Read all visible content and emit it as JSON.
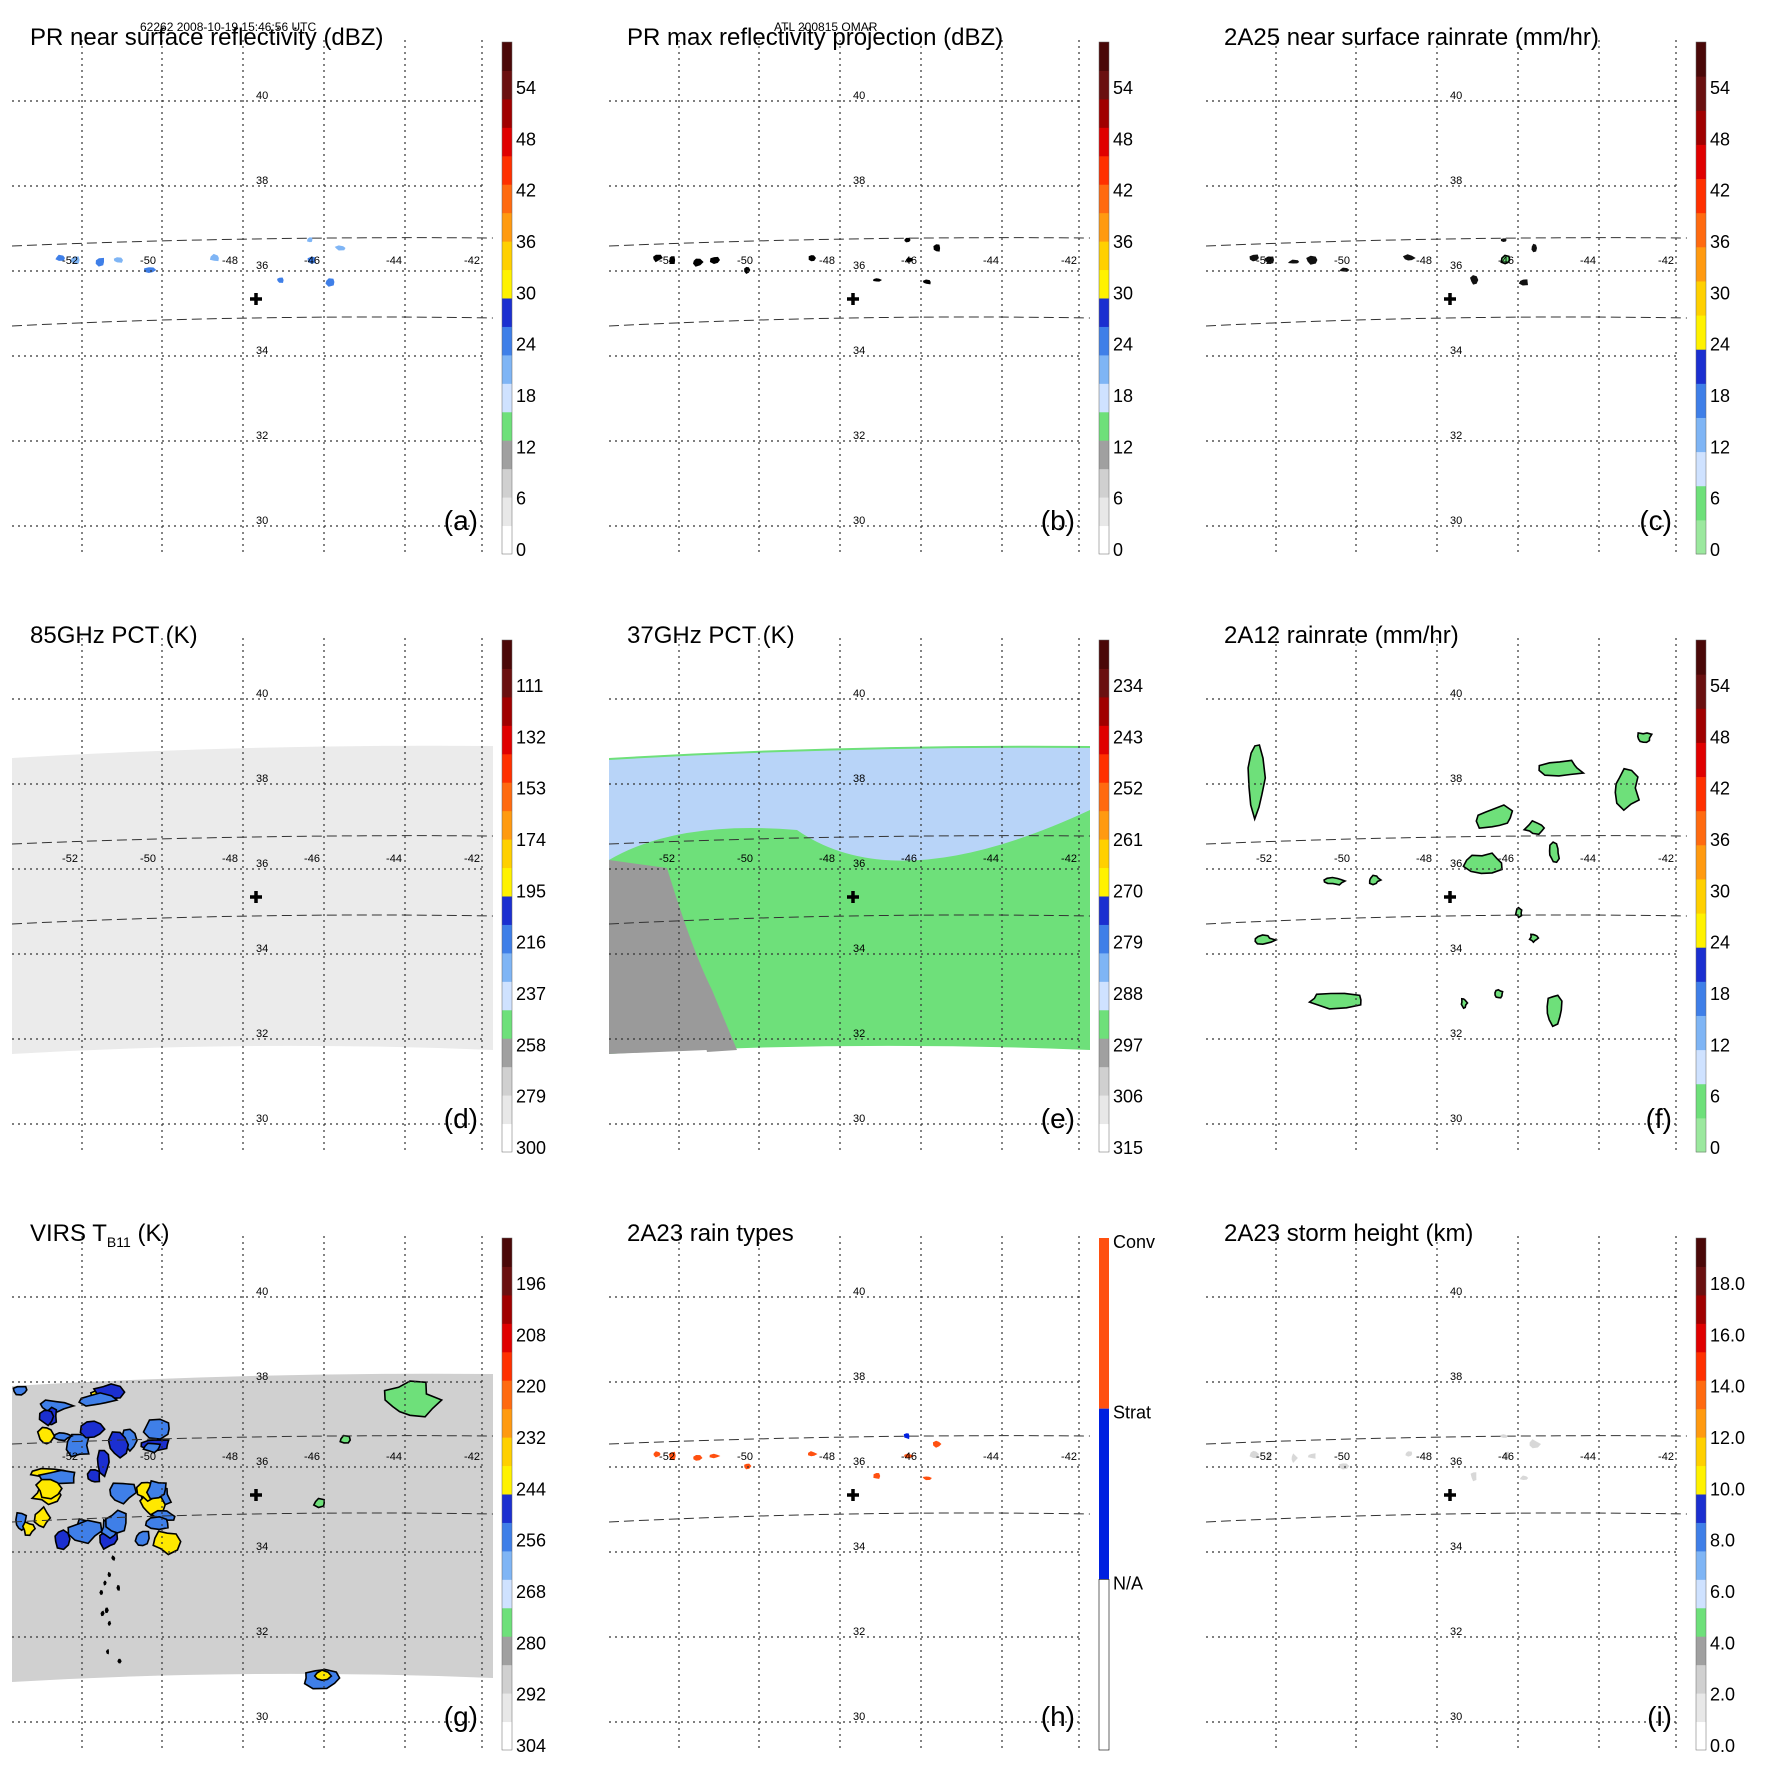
{
  "header": {
    "left": "62262 2008-10-19 15:46:56 UTC",
    "center": "ATL 200815 OMAR"
  },
  "map": {
    "lon_labels": [
      "-52",
      "-50",
      "-48",
      "-46",
      "-44",
      "-42"
    ],
    "lat_labels": [
      "40",
      "38",
      "36",
      "34",
      "32",
      "30"
    ]
  },
  "panels": [
    {
      "id": "a",
      "title": "PR near surface reflectivity (dBZ)",
      "letter": "(a)",
      "field": "swath-pr",
      "cbar": [
        "0",
        "6",
        "12",
        "18",
        "24",
        "30",
        "36",
        "42",
        "48",
        "54"
      ],
      "palette": "std"
    },
    {
      "id": "b",
      "title": "PR max reflectivity projection (dBZ)",
      "letter": "(b)",
      "field": "swath-pr",
      "cbar": [
        "0",
        "6",
        "12",
        "18",
        "24",
        "30",
        "36",
        "42",
        "48",
        "54"
      ],
      "palette": "std"
    },
    {
      "id": "c",
      "title": "2A25 near surface rainrate (mm/hr)",
      "letter": "(c)",
      "field": "swath-pr",
      "cbar": [
        "0",
        "6",
        "12",
        "18",
        "24",
        "30",
        "36",
        "42",
        "48",
        "54"
      ],
      "palette": "rain"
    },
    {
      "id": "d",
      "title": "85GHz PCT (K)",
      "letter": "(d)",
      "field": "tmi85",
      "cbar": [
        "300",
        "279",
        "258",
        "237",
        "216",
        "195",
        "174",
        "153",
        "132",
        "111"
      ],
      "palette": "std"
    },
    {
      "id": "e",
      "title": "37GHz PCT (K)",
      "letter": "(e)",
      "field": "tmi37",
      "cbar": [
        "315",
        "306",
        "297",
        "288",
        "279",
        "270",
        "261",
        "252",
        "243",
        "234"
      ],
      "palette": "std"
    },
    {
      "id": "f",
      "title": "2A12 rainrate (mm/hr)",
      "letter": "(f)",
      "field": "rain2a12",
      "cbar": [
        "0",
        "6",
        "12",
        "18",
        "24",
        "30",
        "36",
        "42",
        "48",
        "54"
      ],
      "palette": "rain"
    },
    {
      "id": "g",
      "title": "VIRS T",
      "title_sub": "B11",
      "title_unit": " (K)",
      "letter": "(g)",
      "field": "virs",
      "cbar": [
        "304",
        "292",
        "280",
        "268",
        "256",
        "244",
        "232",
        "220",
        "208",
        "196"
      ],
      "palette": "std"
    },
    {
      "id": "h",
      "title": "2A23 rain types",
      "letter": "(h)",
      "field": "types",
      "cbar": [
        "N/A",
        "Strat",
        "Conv"
      ],
      "palette": "types"
    },
    {
      "id": "i",
      "title": "2A23 storm height (km)",
      "letter": "(i)",
      "field": "height",
      "cbar": [
        "0.0",
        "2.0",
        "4.0",
        "6.0",
        "8.0",
        "10.0",
        "12.0",
        "14.0",
        "16.0",
        "18.0"
      ],
      "palette": "std"
    }
  ],
  "colors": {
    "std": [
      "#ffffff",
      "#e8e8e8",
      "#d0d0d0",
      "#a0a0a0",
      "#6ee07a",
      "#cfe2ff",
      "#7fb5f5",
      "#3f7fe8",
      "#1b2fd0",
      "#fff200",
      "#ffd000",
      "#ff9a10",
      "#ff6a10",
      "#ff3000",
      "#e00000",
      "#a00000",
      "#6a1010",
      "#4a0808"
    ],
    "rain": [
      "#9be89e",
      "#6ee07a",
      "#cfe2ff",
      "#7fb5f5",
      "#3f7fe8",
      "#1b2fd0",
      "#fff200",
      "#ffd000",
      "#ff9a10",
      "#ff6a10",
      "#ff3000",
      "#e00000",
      "#a00000",
      "#6a1010",
      "#4a0808"
    ],
    "types": [
      "#ffffff",
      "#0020e0",
      "#ff5010"
    ],
    "green": "#6ee07a",
    "lightblue": "#b8d4f8",
    "gray_land": "#9a9a9a",
    "swath_gray": "#ebebeb"
  }
}
